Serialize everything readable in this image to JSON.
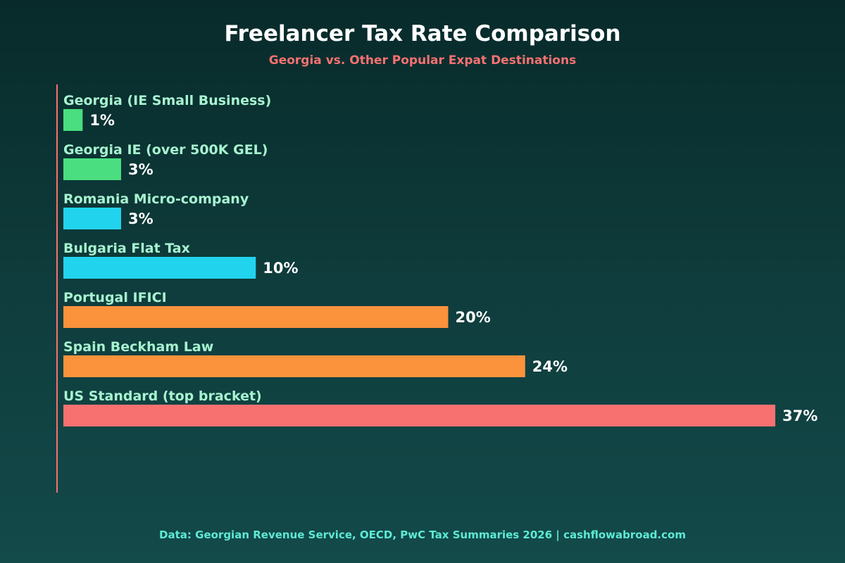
{
  "title": "Freelancer Tax Rate Comparison",
  "subtitle": "Georgia vs. Other Popular Expat Destinations",
  "footer": "Data: Georgian Revenue Service, OECD, PwC Tax Summaries 2026 | cashflowabroad.com",
  "colors": {
    "axis": "#f87171",
    "georgia": "#4ade80",
    "eastern_europe": "#22d3ee",
    "southern_europe": "#fb923c",
    "us": "#f87171"
  },
  "chart_data": {
    "type": "bar",
    "orientation": "horizontal",
    "categories": [
      "Georgia (IE Small Business)",
      "Georgia IE (over 500K GEL)",
      "Romania Micro-company",
      "Bulgaria Flat Tax",
      "Portugal IFICI",
      "Spain Beckham Law",
      "US Standard (top bracket)"
    ],
    "values": [
      1,
      3,
      3,
      10,
      20,
      24,
      37
    ],
    "value_labels": [
      "1%",
      "3%",
      "3%",
      "10%",
      "20%",
      "24%",
      "37%"
    ],
    "bar_colors": [
      "#4ade80",
      "#4ade80",
      "#22d3ee",
      "#22d3ee",
      "#fb923c",
      "#fb923c",
      "#f87171"
    ],
    "unit": "%",
    "xlim": [
      0,
      37
    ],
    "grid": false,
    "legend": "none"
  }
}
